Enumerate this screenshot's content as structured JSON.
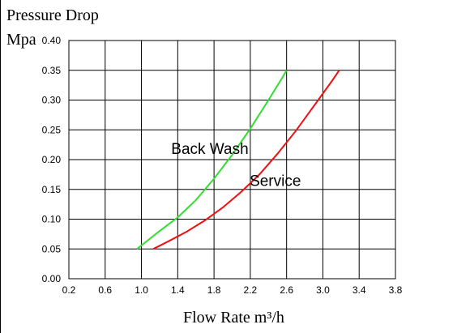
{
  "chart_data": {
    "type": "line",
    "title_lines": [
      "Pressure Drop",
      "Mpa"
    ],
    "xlabel": "Flow Rate m³/h",
    "xlim": [
      0.2,
      3.8
    ],
    "ylim": [
      0.0,
      0.4
    ],
    "x_ticks": [
      "0.2",
      "0.6",
      "1.0",
      "1.4",
      "1.8",
      "2.2",
      "2.6",
      "3.0",
      "3.4",
      "3.8"
    ],
    "y_ticks": [
      "0.00",
      "0.05",
      "0.10",
      "0.15",
      "0.20",
      "0.25",
      "0.30",
      "0.35",
      "0.40"
    ],
    "grid": true,
    "series": [
      {
        "name": "Back Wash",
        "color": "#33dd33",
        "x": [
          0.95,
          1.05,
          1.2,
          1.4,
          1.6,
          1.8,
          2.0,
          2.2,
          2.4,
          2.55,
          2.6
        ],
        "y": [
          0.05,
          0.062,
          0.08,
          0.103,
          0.132,
          0.168,
          0.208,
          0.252,
          0.3,
          0.337,
          0.35
        ]
      },
      {
        "name": "Service",
        "color": "#ee1111",
        "x": [
          1.13,
          1.3,
          1.5,
          1.7,
          1.9,
          2.1,
          2.3,
          2.5,
          2.7,
          2.9,
          3.1,
          3.18
        ],
        "y": [
          0.05,
          0.063,
          0.079,
          0.098,
          0.12,
          0.146,
          0.175,
          0.21,
          0.248,
          0.29,
          0.332,
          0.35
        ]
      }
    ],
    "annotations": [
      "Back Wash",
      "Service"
    ]
  }
}
